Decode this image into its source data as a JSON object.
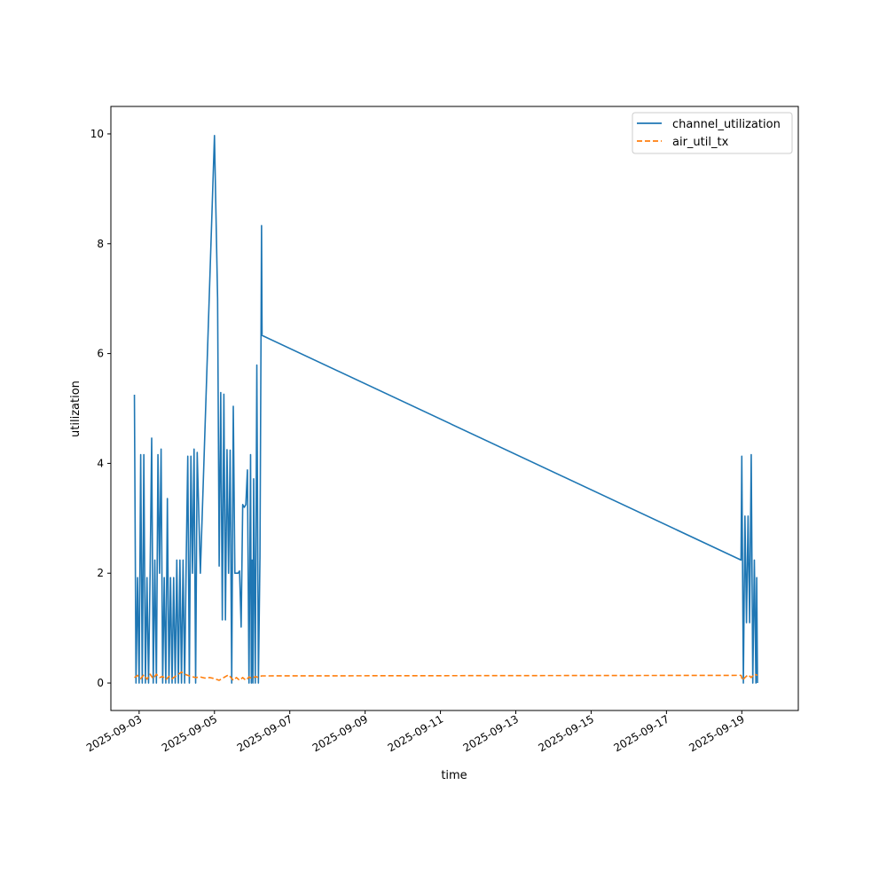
{
  "chart_data": {
    "type": "line",
    "xlabel": "time",
    "ylabel": "utilization",
    "x_axis_kind": "date",
    "xlim": [
      "2025-09-02 06:00",
      "2025-09-20 12:00"
    ],
    "ylim": [
      -0.5,
      10.5
    ],
    "x_ticks": [
      "2025-09-03",
      "2025-09-05",
      "2025-09-07",
      "2025-09-09",
      "2025-09-11",
      "2025-09-13",
      "2025-09-15",
      "2025-09-17",
      "2025-09-19"
    ],
    "y_ticks": [
      0,
      2,
      4,
      6,
      8,
      10
    ],
    "grid": false,
    "legend_position": "top-right",
    "series": [
      {
        "name": "channel_utilization",
        "color": "#1f77b4",
        "dash": "solid",
        "points": [
          [
            "2025-09-02 21:00",
            5.25
          ],
          [
            "2025-09-02 22:00",
            0.0
          ],
          [
            "2025-09-02 23:00",
            1.92
          ],
          [
            "2025-09-03 00:00",
            0.0
          ],
          [
            "2025-09-03 01:00",
            4.16
          ],
          [
            "2025-09-03 02:00",
            0.0
          ],
          [
            "2025-09-03 03:00",
            4.16
          ],
          [
            "2025-09-03 04:00",
            0.0
          ],
          [
            "2025-09-03 05:00",
            1.92
          ],
          [
            "2025-09-03 06:00",
            0.0
          ],
          [
            "2025-09-03 07:00",
            2.0
          ],
          [
            "2025-09-03 08:00",
            4.46
          ],
          [
            "2025-09-03 09:00",
            0.0
          ],
          [
            "2025-09-03 10:00",
            2.24
          ],
          [
            "2025-09-03 11:00",
            0.0
          ],
          [
            "2025-09-03 12:00",
            4.16
          ],
          [
            "2025-09-03 13:00",
            2.0
          ],
          [
            "2025-09-03 14:00",
            4.26
          ],
          [
            "2025-09-03 15:00",
            0.0
          ],
          [
            "2025-09-03 16:00",
            1.92
          ],
          [
            "2025-09-03 17:00",
            0.0
          ],
          [
            "2025-09-03 18:00",
            3.36
          ],
          [
            "2025-09-03 19:00",
            0.0
          ],
          [
            "2025-09-03 20:00",
            1.92
          ],
          [
            "2025-09-03 21:00",
            0.0
          ],
          [
            "2025-09-03 22:00",
            1.92
          ],
          [
            "2025-09-03 23:00",
            0.0
          ],
          [
            "2025-09-04 00:00",
            2.24
          ],
          [
            "2025-09-04 01:00",
            0.0
          ],
          [
            "2025-09-04 02:00",
            2.24
          ],
          [
            "2025-09-04 03:00",
            0.0
          ],
          [
            "2025-09-04 04:00",
            2.24
          ],
          [
            "2025-09-04 05:00",
            0.0
          ],
          [
            "2025-09-04 06:00",
            2.24
          ],
          [
            "2025-09-04 07:00",
            4.13
          ],
          [
            "2025-09-04 08:00",
            0.0
          ],
          [
            "2025-09-04 09:00",
            4.13
          ],
          [
            "2025-09-04 10:00",
            2.0
          ],
          [
            "2025-09-04 11:00",
            4.26
          ],
          [
            "2025-09-04 12:00",
            0.0
          ],
          [
            "2025-09-04 13:00",
            4.2
          ],
          [
            "2025-09-04 15:00",
            2.0
          ],
          [
            "2025-09-05 00:00",
            9.97
          ],
          [
            "2025-09-05 02:00",
            7.0
          ],
          [
            "2025-09-05 03:00",
            2.13
          ],
          [
            "2025-09-05 04:00",
            5.29
          ],
          [
            "2025-09-05 05:00",
            1.15
          ],
          [
            "2025-09-05 06:00",
            5.26
          ],
          [
            "2025-09-05 07:00",
            1.15
          ],
          [
            "2025-09-05 08:00",
            4.25
          ],
          [
            "2025-09-05 09:00",
            2.0
          ],
          [
            "2025-09-05 10:00",
            4.24
          ],
          [
            "2025-09-05 11:00",
            0.0
          ],
          [
            "2025-09-05 12:00",
            5.04
          ],
          [
            "2025-09-05 13:00",
            2.0
          ],
          [
            "2025-09-05 15:00",
            2.0
          ],
          [
            "2025-09-05 16:00",
            2.04
          ],
          [
            "2025-09-05 17:00",
            1.02
          ],
          [
            "2025-09-05 18:00",
            3.25
          ],
          [
            "2025-09-05 19:00",
            3.2
          ],
          [
            "2025-09-05 20:00",
            3.25
          ],
          [
            "2025-09-05 21:00",
            3.88
          ],
          [
            "2025-09-05 22:00",
            0.0
          ],
          [
            "2025-09-05 23:00",
            4.16
          ],
          [
            "2025-09-05 23:30",
            0.0
          ],
          [
            "2025-09-06 00:00",
            2.24
          ],
          [
            "2025-09-06 00:30",
            0.0
          ],
          [
            "2025-09-06 01:00",
            3.72
          ],
          [
            "2025-09-06 02:00",
            0.0
          ],
          [
            "2025-09-06 03:00",
            5.79
          ],
          [
            "2025-09-06 04:00",
            0.0
          ],
          [
            "2025-09-06 05:00",
            2.3
          ],
          [
            "2025-09-06 06:00",
            8.33
          ],
          [
            "2025-09-06 06:20",
            6.33
          ],
          [
            "2025-09-18 23:30",
            2.24
          ],
          [
            "2025-09-19 00:00",
            4.13
          ],
          [
            "2025-09-19 01:00",
            0.0
          ],
          [
            "2025-09-19 02:00",
            3.04
          ],
          [
            "2025-09-19 03:00",
            1.1
          ],
          [
            "2025-09-19 04:00",
            3.04
          ],
          [
            "2025-09-19 05:00",
            1.1
          ],
          [
            "2025-09-19 06:00",
            4.16
          ],
          [
            "2025-09-19 07:00",
            0.0
          ],
          [
            "2025-09-19 08:00",
            2.24
          ],
          [
            "2025-09-19 09:00",
            0.0
          ],
          [
            "2025-09-19 09:30",
            1.92
          ],
          [
            "2025-09-19 10:00",
            0.0
          ]
        ]
      },
      {
        "name": "air_util_tx",
        "color": "#ff7f0e",
        "dash": "dashed",
        "points": [
          [
            "2025-09-02 21:00",
            0.1
          ],
          [
            "2025-09-02 23:00",
            0.14
          ],
          [
            "2025-09-03 01:00",
            0.08
          ],
          [
            "2025-09-03 03:00",
            0.15
          ],
          [
            "2025-09-03 05:00",
            0.07
          ],
          [
            "2025-09-03 07:00",
            0.16
          ],
          [
            "2025-09-03 09:00",
            0.08
          ],
          [
            "2025-09-03 11:00",
            0.16
          ],
          [
            "2025-09-03 13:00",
            0.1
          ],
          [
            "2025-09-03 15:00",
            0.12
          ],
          [
            "2025-09-03 17:00",
            0.06
          ],
          [
            "2025-09-03 19:00",
            0.12
          ],
          [
            "2025-09-03 21:00",
            0.08
          ],
          [
            "2025-09-04 00:00",
            0.14
          ],
          [
            "2025-09-04 03:00",
            0.2
          ],
          [
            "2025-09-04 06:00",
            0.15
          ],
          [
            "2025-09-04 09:00",
            0.12
          ],
          [
            "2025-09-04 12:00",
            0.1
          ],
          [
            "2025-09-04 15:00",
            0.11
          ],
          [
            "2025-09-04 18:00",
            0.09
          ],
          [
            "2025-09-04 21:00",
            0.1
          ],
          [
            "2025-09-05 00:00",
            0.08
          ],
          [
            "2025-09-05 03:00",
            0.05
          ],
          [
            "2025-09-05 06:00",
            0.1
          ],
          [
            "2025-09-05 09:00",
            0.15
          ],
          [
            "2025-09-05 12:00",
            0.05
          ],
          [
            "2025-09-05 14:00",
            0.1
          ],
          [
            "2025-09-05 16:00",
            0.05
          ],
          [
            "2025-09-05 18:00",
            0.1
          ],
          [
            "2025-09-05 20:00",
            0.05
          ],
          [
            "2025-09-05 22:00",
            0.11
          ],
          [
            "2025-09-06 00:00",
            0.08
          ],
          [
            "2025-09-06 02:00",
            0.12
          ],
          [
            "2025-09-06 04:00",
            0.1
          ],
          [
            "2025-09-06 06:00",
            0.13
          ],
          [
            "2025-09-06 06:20",
            0.13
          ],
          [
            "2025-09-18 23:30",
            0.14
          ],
          [
            "2025-09-19 00:30",
            0.05
          ],
          [
            "2025-09-19 02:00",
            0.1
          ],
          [
            "2025-09-19 04:00",
            0.15
          ],
          [
            "2025-09-19 06:00",
            0.1
          ],
          [
            "2025-09-19 08:00",
            0.16
          ],
          [
            "2025-09-19 10:00",
            0.14
          ]
        ]
      }
    ]
  }
}
